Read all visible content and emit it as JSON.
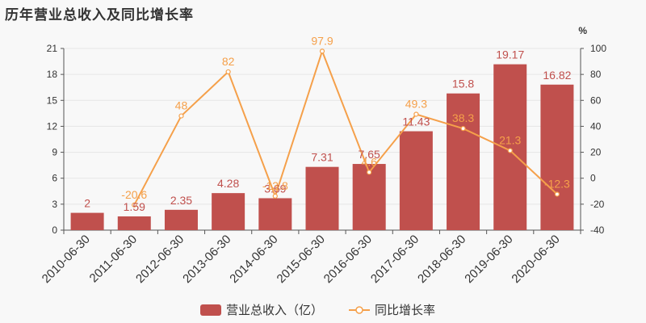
{
  "title": "历年营业总收入及同比增长率",
  "chart_data": {
    "type": "bar+line",
    "categories": [
      "2010-06-30",
      "2011-06-30",
      "2012-06-30",
      "2013-06-30",
      "2014-06-30",
      "2015-06-30",
      "2016-06-30",
      "2017-06-30",
      "2018-06-30",
      "2019-06-30",
      "2020-06-30"
    ],
    "series": [
      {
        "name": "营业总收入（亿）",
        "type": "bar",
        "axis": "left",
        "values": [
          2,
          1.59,
          2.35,
          4.28,
          3.69,
          7.31,
          7.65,
          11.43,
          15.8,
          19.17,
          16.82
        ],
        "labels": [
          "2",
          "1.59",
          "2.35",
          "4.28",
          "3.69",
          "7.31",
          "7.65",
          "11.43",
          "15.8",
          "19.17",
          "16.82"
        ]
      },
      {
        "name": "同比增长率",
        "type": "line",
        "axis": "right",
        "values": [
          null,
          -20.6,
          48,
          82,
          -13.8,
          97.9,
          4.6,
          49.3,
          38.3,
          21.3,
          -12.3
        ],
        "labels": [
          "",
          "-20.6",
          "48",
          "82",
          "-13.8",
          "97.9",
          "4.6",
          "49.3",
          "38.3",
          "21.3",
          "-12.3"
        ]
      }
    ],
    "y_left": {
      "min": 0,
      "max": 21,
      "ticks": [
        0,
        3,
        6,
        9,
        12,
        15,
        18,
        21
      ]
    },
    "y_right": {
      "min": -40,
      "max": 100,
      "ticks": [
        -40,
        -20,
        0,
        20,
        40,
        60,
        80,
        100
      ],
      "unit": "%"
    },
    "legend_position": "bottom",
    "colors": {
      "bar": "#c0504d",
      "line": "#f5a04a",
      "bar_label": "#c0504d",
      "line_label": "#f5a04a"
    }
  }
}
